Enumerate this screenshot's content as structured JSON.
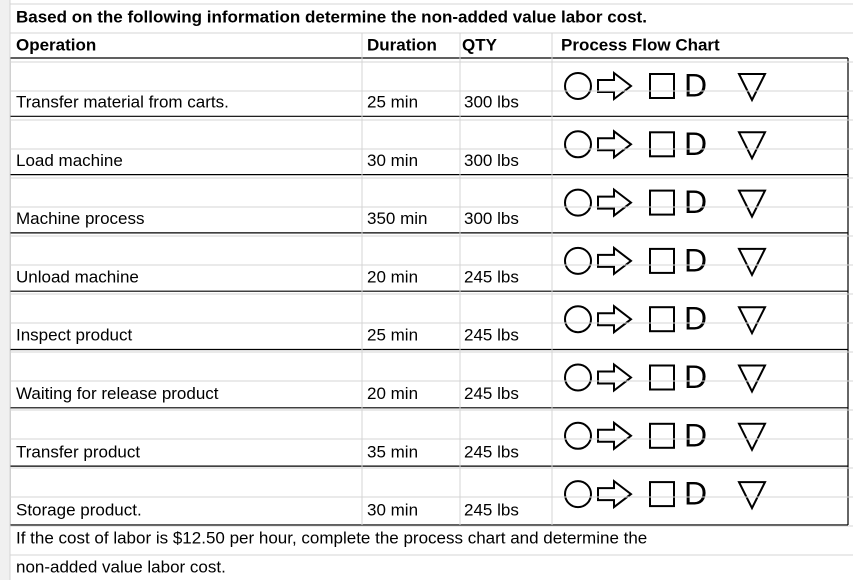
{
  "title": "Based on the following information determine the non-added value labor cost.",
  "table": {
    "headers": [
      "Operation",
      "Duration",
      "QTY",
      "Process Flow Chart"
    ],
    "delay_symbol": "D",
    "rows": [
      [
        "Transfer material from carts.",
        "25 min",
        "300 lbs"
      ],
      [
        "Load machine",
        "30 min",
        "300 lbs"
      ],
      [
        "Machine process",
        "350 min",
        "300 lbs"
      ],
      [
        "Unload machine",
        "20 min",
        "245 lbs"
      ],
      [
        "Inspect product",
        "25 min",
        "245 lbs"
      ],
      [
        "Waiting for release product",
        "20 min",
        "245 lbs"
      ],
      [
        "Transfer product",
        "35 min",
        "245 lbs"
      ],
      [
        "Storage product.",
        "30 min",
        "245 lbs"
      ]
    ]
  },
  "footer": [
    "If the cost of labor is $12.50 per hour, complete the process chart and determine the",
    "non-added value labor cost."
  ]
}
